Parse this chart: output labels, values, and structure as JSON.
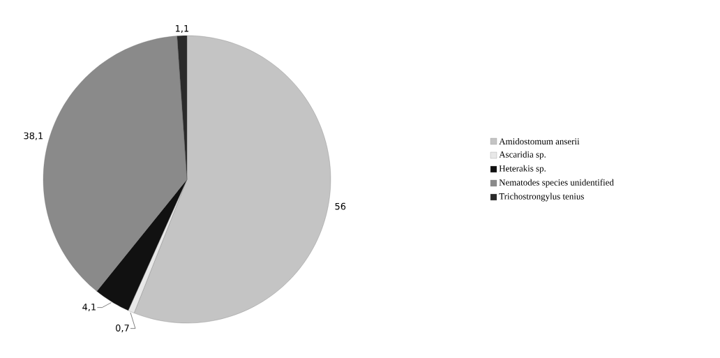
{
  "chart_data": {
    "type": "pie",
    "categories": [
      "Amidostomum anserii",
      "Ascaridia sp.",
      "Heterakis sp.",
      "Nematodes species unidentified",
      "Trichostrongylus tenius"
    ],
    "values": [
      56,
      0.7,
      4.1,
      38.1,
      1.1
    ],
    "value_labels": [
      "56",
      "0,7",
      "4,1",
      "38,1",
      "1,1"
    ],
    "colors": [
      "#c4c4c4",
      "#e8e8e8",
      "#111111",
      "#8a8a8a",
      "#2a2a2a"
    ],
    "legend": "right"
  }
}
